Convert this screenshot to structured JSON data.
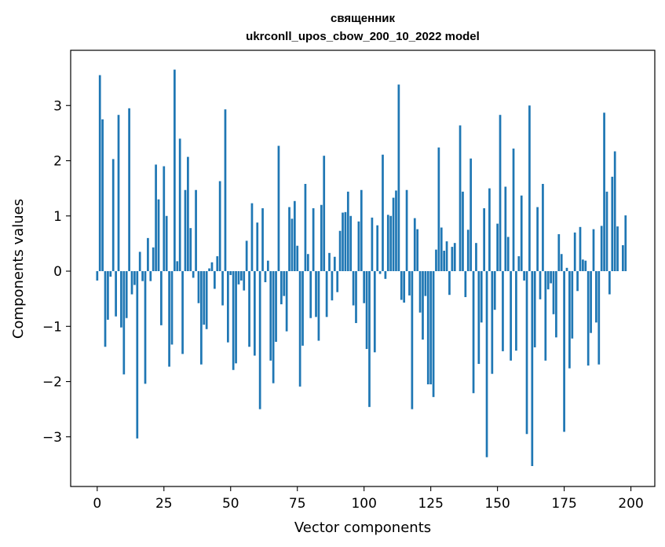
{
  "chart_data": {
    "type": "bar",
    "title": "священник",
    "subtitle": "ukrconll_upos_cbow_200_10_2022 model",
    "xlabel": "Vector components",
    "ylabel": "Components values",
    "xlim": [
      -9.95,
      208.95
    ],
    "ylim": [
      -3.9,
      4.0
    ],
    "xticks": [
      0,
      25,
      50,
      75,
      100,
      125,
      150,
      175,
      200
    ],
    "xtick_labels": [
      "0",
      "25",
      "50",
      "75",
      "100",
      "125",
      "150",
      "175",
      "200"
    ],
    "yticks": [
      -3,
      -2,
      -1,
      0,
      1,
      2,
      3
    ],
    "ytick_labels": [
      "−3",
      "−2",
      "−1",
      "0",
      "1",
      "2",
      "3"
    ],
    "grid": false,
    "bar_color": "#1f77b4",
    "x_start": 0,
    "values": [
      -0.17,
      3.55,
      2.75,
      -1.37,
      -0.88,
      -0.1,
      2.03,
      -0.82,
      2.83,
      -1.02,
      -1.87,
      -0.85,
      2.95,
      -0.42,
      -0.25,
      -3.03,
      0.35,
      -0.18,
      -2.04,
      0.6,
      -0.18,
      0.43,
      1.93,
      1.3,
      -0.98,
      1.9,
      1.0,
      -1.73,
      -1.33,
      3.65,
      0.18,
      2.4,
      -1.5,
      1.47,
      2.07,
      0.78,
      -0.12,
      1.47,
      -0.58,
      -1.69,
      -0.97,
      -1.05,
      0.05,
      0.16,
      -0.32,
      0.27,
      1.63,
      -0.62,
      2.93,
      -1.29,
      -0.07,
      -1.79,
      -1.67,
      -0.24,
      -0.17,
      -0.35,
      0.55,
      -1.37,
      1.23,
      -1.53,
      0.88,
      -2.5,
      1.14,
      -0.2,
      0.19,
      -1.62,
      -2.03,
      -1.28,
      2.27,
      -0.6,
      -0.45,
      -1.09,
      1.16,
      0.95,
      1.27,
      0.46,
      -2.09,
      -1.35,
      1.58,
      0.31,
      -0.85,
      1.14,
      -0.83,
      -1.26,
      1.2,
      2.09,
      -0.83,
      0.33,
      -0.53,
      0.26,
      -0.38,
      0.73,
      1.06,
      1.07,
      1.44,
      1.0,
      -0.62,
      -0.94,
      0.9,
      1.47,
      -0.58,
      -1.41,
      -2.46,
      0.97,
      -1.47,
      0.83,
      -0.05,
      2.11,
      -0.14,
      1.02,
      1.0,
      1.33,
      1.46,
      3.38,
      -0.52,
      -0.57,
      1.47,
      -0.44,
      -2.5,
      0.96,
      0.76,
      -0.75,
      -1.24,
      -0.45,
      -2.05,
      -2.05,
      -2.28,
      0.39,
      2.24,
      0.79,
      0.37,
      0.54,
      -0.43,
      0.44,
      0.51,
      0.0,
      2.64,
      1.44,
      -0.47,
      0.75,
      2.04,
      -2.21,
      0.51,
      -1.68,
      -0.93,
      1.14,
      -3.37,
      1.5,
      -1.86,
      -0.7,
      0.86,
      2.83,
      -1.45,
      1.53,
      0.62,
      -1.62,
      2.22,
      -1.44,
      0.27,
      1.37,
      -0.17,
      -2.95,
      3.0,
      -3.53,
      -1.38,
      1.16,
      -0.51,
      1.58,
      -1.62,
      -0.33,
      -0.22,
      -0.78,
      -1.2,
      0.67,
      0.31,
      -2.91,
      0.06,
      -1.76,
      -1.22,
      0.7,
      -0.36,
      0.8,
      0.21,
      0.19,
      -1.71,
      -1.12,
      0.76,
      -0.93,
      -1.69,
      0.82,
      2.87,
      1.44,
      -0.42,
      1.71,
      2.17,
      0.81,
      0.0,
      0.47,
      1.01
    ]
  }
}
